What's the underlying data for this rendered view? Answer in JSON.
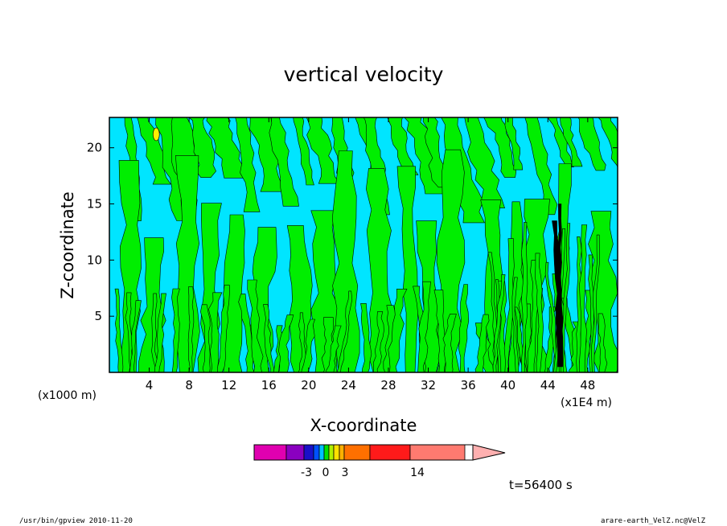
{
  "chart_data": {
    "type": "heatmap",
    "title": "vertical velocity",
    "xlabel": "X-coordinate",
    "ylabel": "Z-coordinate",
    "x_unit_left": "(x1000 m)",
    "x_unit_right": "(x1E4 m)",
    "xlim": [
      0,
      51
    ],
    "ylim": [
      0,
      22.7
    ],
    "x_ticks": [
      "4",
      "8",
      "12",
      "16",
      "20",
      "24",
      "28",
      "32",
      "36",
      "40",
      "44",
      "48"
    ],
    "y_ticks": [
      "5",
      "10",
      "15",
      "20"
    ],
    "x_tick_values": [
      4,
      8,
      12,
      16,
      20,
      24,
      28,
      32,
      36,
      40,
      44,
      48
    ],
    "y_tick_values": [
      5,
      10,
      15,
      20
    ],
    "field_colors": {
      "negative": "#00e5ff",
      "positive": "#00ee00",
      "strong_positive": "#ffee00",
      "strong_negative": "#000000"
    },
    "colorbar": {
      "labels": [
        "-3",
        "0",
        "3",
        "14"
      ],
      "label_values": [
        -3,
        0,
        3,
        14
      ],
      "colors": [
        "#e000b0",
        "#8a00c0",
        "#1a10c8",
        "#0050ff",
        "#00c0ff",
        "#00e000",
        "#b0f000",
        "#ffe000",
        "#ffb000",
        "#ff7000",
        "#ff1a1a",
        "#ff7a70",
        "#ffb0b0"
      ]
    },
    "time_label": "t=56400 s",
    "footer_left": "/usr/bin/gpview   2010-11-20",
    "footer_right": "arare-earth_VelZ.nc@VelZ"
  }
}
